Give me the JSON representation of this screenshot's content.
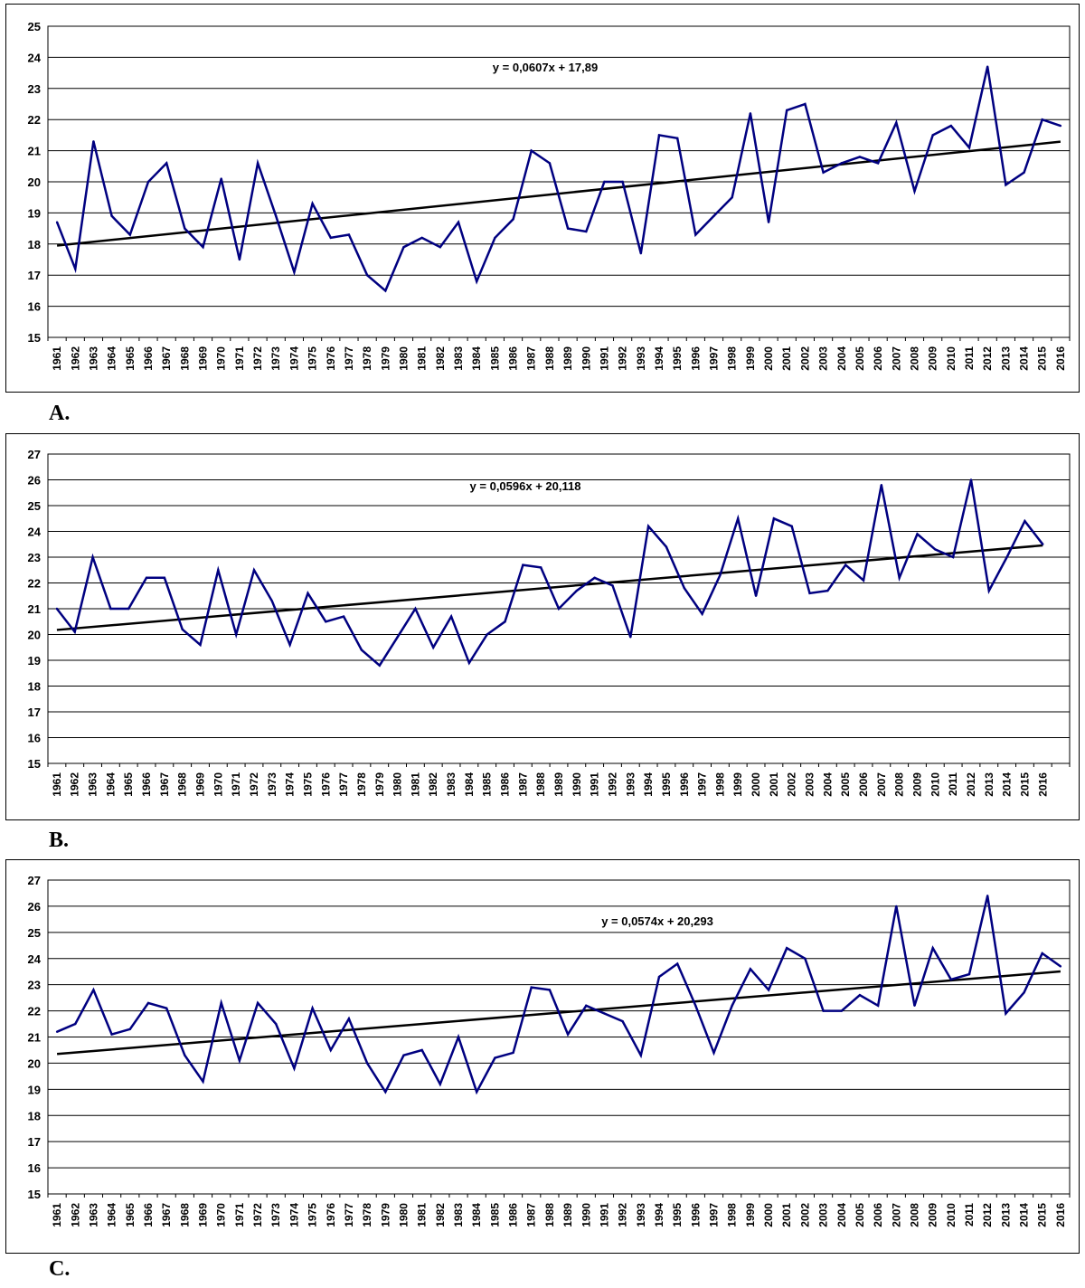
{
  "chart_data": [
    {
      "type": "line",
      "panel_label": "A.",
      "equation": "y = 0,0607x + 17,89",
      "ylim": [
        15,
        25
      ],
      "y_ticks": [
        15,
        16,
        17,
        18,
        19,
        20,
        21,
        22,
        23,
        24,
        25
      ],
      "categories": [
        "1961",
        "1962",
        "1963",
        "1964",
        "1965",
        "1966",
        "1967",
        "1968",
        "1969",
        "1970",
        "1971",
        "1972",
        "1973",
        "1974",
        "1975",
        "1976",
        "1977",
        "1978",
        "1979",
        "1980",
        "1981",
        "1982",
        "1983",
        "1984",
        "1985",
        "1986",
        "1987",
        "1988",
        "1989",
        "1990",
        "1991",
        "1992",
        "1993",
        "1994",
        "1995",
        "1996",
        "1997",
        "1998",
        "1999",
        "2000",
        "2001",
        "2002",
        "2003",
        "2004",
        "2005",
        "2006",
        "2007",
        "2008",
        "2009",
        "2010",
        "2011",
        "2012",
        "2013",
        "2014",
        "2015",
        "2016"
      ],
      "values": [
        18.7,
        17.2,
        21.3,
        18.9,
        18.3,
        20.0,
        20.6,
        18.5,
        17.9,
        20.1,
        17.5,
        20.6,
        18.9,
        17.1,
        19.3,
        18.2,
        18.3,
        17.0,
        16.5,
        17.9,
        18.2,
        17.9,
        18.7,
        16.8,
        18.2,
        18.8,
        21.0,
        20.6,
        18.5,
        18.4,
        20.0,
        20.0,
        17.7,
        21.5,
        21.4,
        18.3,
        18.9,
        19.5,
        22.2,
        18.7,
        22.3,
        22.5,
        20.3,
        20.6,
        20.8,
        20.6,
        21.9,
        19.7,
        21.5,
        21.8,
        21.1,
        23.7,
        19.9,
        20.3,
        22.0,
        21.8
      ],
      "trend": {
        "slope": 0.0607,
        "intercept": 17.89
      },
      "grid": true,
      "line_color": "#000080"
    },
    {
      "type": "line",
      "panel_label": "B.",
      "equation": "y = 0,0596x + 20,118",
      "ylim": [
        15,
        27
      ],
      "y_ticks": [
        15,
        16,
        17,
        18,
        19,
        20,
        21,
        22,
        23,
        24,
        25,
        26,
        27
      ],
      "categories": [
        "1961",
        "1962",
        "1963",
        "1964",
        "1965",
        "1966",
        "1967",
        "1968",
        "1969",
        "1970",
        "1971",
        "1972",
        "1973",
        "1974",
        "1975",
        "1976",
        "1977",
        "1978",
        "1979",
        "1980",
        "1981",
        "1982",
        "1983",
        "1984",
        "1985",
        "1986",
        "1987",
        "1988",
        "1989",
        "1990",
        "1991",
        "1992",
        "1993",
        "1994",
        "1995",
        "1996",
        "1997",
        "1998",
        "1999",
        "2000",
        "2001",
        "2002",
        "2003",
        "2004",
        "2005",
        "2006",
        "2007",
        "2008",
        "2009",
        "2010",
        "2011",
        "2012",
        "2013",
        "2014",
        "2015",
        "2016"
      ],
      "slots": 57,
      "values": [
        21.0,
        20.1,
        23.0,
        21.0,
        21.0,
        22.2,
        22.2,
        20.2,
        19.6,
        22.5,
        20.0,
        22.5,
        21.3,
        19.6,
        21.6,
        20.5,
        20.7,
        19.4,
        18.8,
        19.9,
        21.0,
        19.5,
        20.7,
        18.9,
        20.0,
        20.5,
        22.7,
        22.6,
        21.0,
        21.7,
        22.2,
        21.9,
        19.9,
        24.2,
        23.4,
        21.8,
        20.8,
        22.3,
        24.5,
        21.5,
        24.5,
        24.2,
        21.6,
        21.7,
        22.7,
        22.1,
        25.8,
        22.2,
        23.9,
        23.3,
        23.0,
        26.0,
        21.7,
        23.0,
        24.4,
        23.5
      ],
      "trend": {
        "slope": 0.0596,
        "intercept": 20.118
      },
      "grid": true,
      "line_color": "#000080"
    },
    {
      "type": "line",
      "panel_label": "C.",
      "equation": "y = 0,0574x + 20,293",
      "ylim": [
        15,
        27
      ],
      "y_ticks": [
        15,
        16,
        17,
        18,
        19,
        20,
        21,
        22,
        23,
        24,
        25,
        26,
        27
      ],
      "categories": [
        "1961",
        "1962",
        "1963",
        "1964",
        "1965",
        "1966",
        "1967",
        "1968",
        "1969",
        "1970",
        "1971",
        "1972",
        "1973",
        "1974",
        "1975",
        "1976",
        "1977",
        "1978",
        "1979",
        "1980",
        "1981",
        "1982",
        "1983",
        "1984",
        "1985",
        "1986",
        "1987",
        "1988",
        "1989",
        "1990",
        "1991",
        "1992",
        "1993",
        "1994",
        "1995",
        "1996",
        "1997",
        "1998",
        "1999",
        "2000",
        "2001",
        "2002",
        "2003",
        "2004",
        "2005",
        "2006",
        "2007",
        "2008",
        "2009",
        "2010",
        "2011",
        "2012",
        "2013",
        "2014",
        "2015",
        "2016"
      ],
      "values": [
        21.2,
        21.5,
        22.8,
        21.1,
        21.3,
        22.3,
        22.1,
        20.3,
        19.3,
        22.3,
        20.1,
        22.3,
        21.5,
        19.8,
        22.1,
        20.5,
        21.7,
        20.0,
        18.9,
        20.3,
        20.5,
        19.2,
        21.0,
        18.9,
        20.2,
        20.4,
        22.9,
        22.8,
        21.1,
        22.2,
        21.9,
        21.6,
        20.3,
        23.3,
        23.8,
        22.2,
        20.4,
        22.2,
        23.6,
        22.8,
        24.4,
        24.0,
        22.0,
        22.0,
        22.6,
        22.2,
        26.0,
        22.2,
        24.4,
        23.2,
        23.4,
        26.4,
        21.9,
        22.7,
        24.2,
        23.7
      ],
      "trend": {
        "slope": 0.0574,
        "intercept": 20.293
      },
      "grid": true,
      "line_color": "#000080"
    }
  ]
}
